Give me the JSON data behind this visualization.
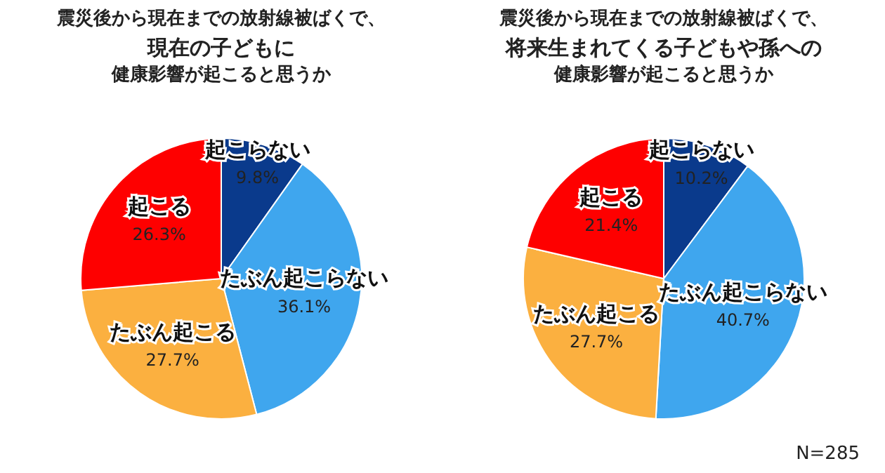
{
  "chart_data": [
    {
      "type": "pie",
      "title": "震災後から現在までの放射線被ばくで、",
      "subtitle": "現在の子どもに",
      "annotations": [
        "健康影響が起こると思うか"
      ],
      "categories": [
        "起こらない",
        "たぶん起こらない",
        "たぶん起こる",
        "起こる"
      ],
      "values": [
        9.8,
        36.1,
        27.7,
        26.3
      ],
      "value_labels": [
        "9.8%",
        "36.1%",
        "27.7%",
        "26.3%"
      ],
      "colors": [
        "#0a3a8c",
        "#3fa6ee",
        "#fbb040",
        "#fe0000"
      ],
      "legend": false
    },
    {
      "type": "pie",
      "title": "震災後から現在までの放射線被ばくで、",
      "subtitle": "将来生まれてくる子どもや孫への",
      "annotations": [
        "健康影響が起こると思うか",
        "N=285"
      ],
      "categories": [
        "起こらない",
        "たぶん起こらない",
        "たぶん起こる",
        "起こる"
      ],
      "values": [
        10.2,
        40.7,
        27.7,
        21.4
      ],
      "value_labels": [
        "10.2%",
        "40.7%",
        "27.7%",
        "21.4%"
      ],
      "colors": [
        "#0a3a8c",
        "#3fa6ee",
        "#fbb040",
        "#fe0000"
      ],
      "legend": false
    }
  ]
}
